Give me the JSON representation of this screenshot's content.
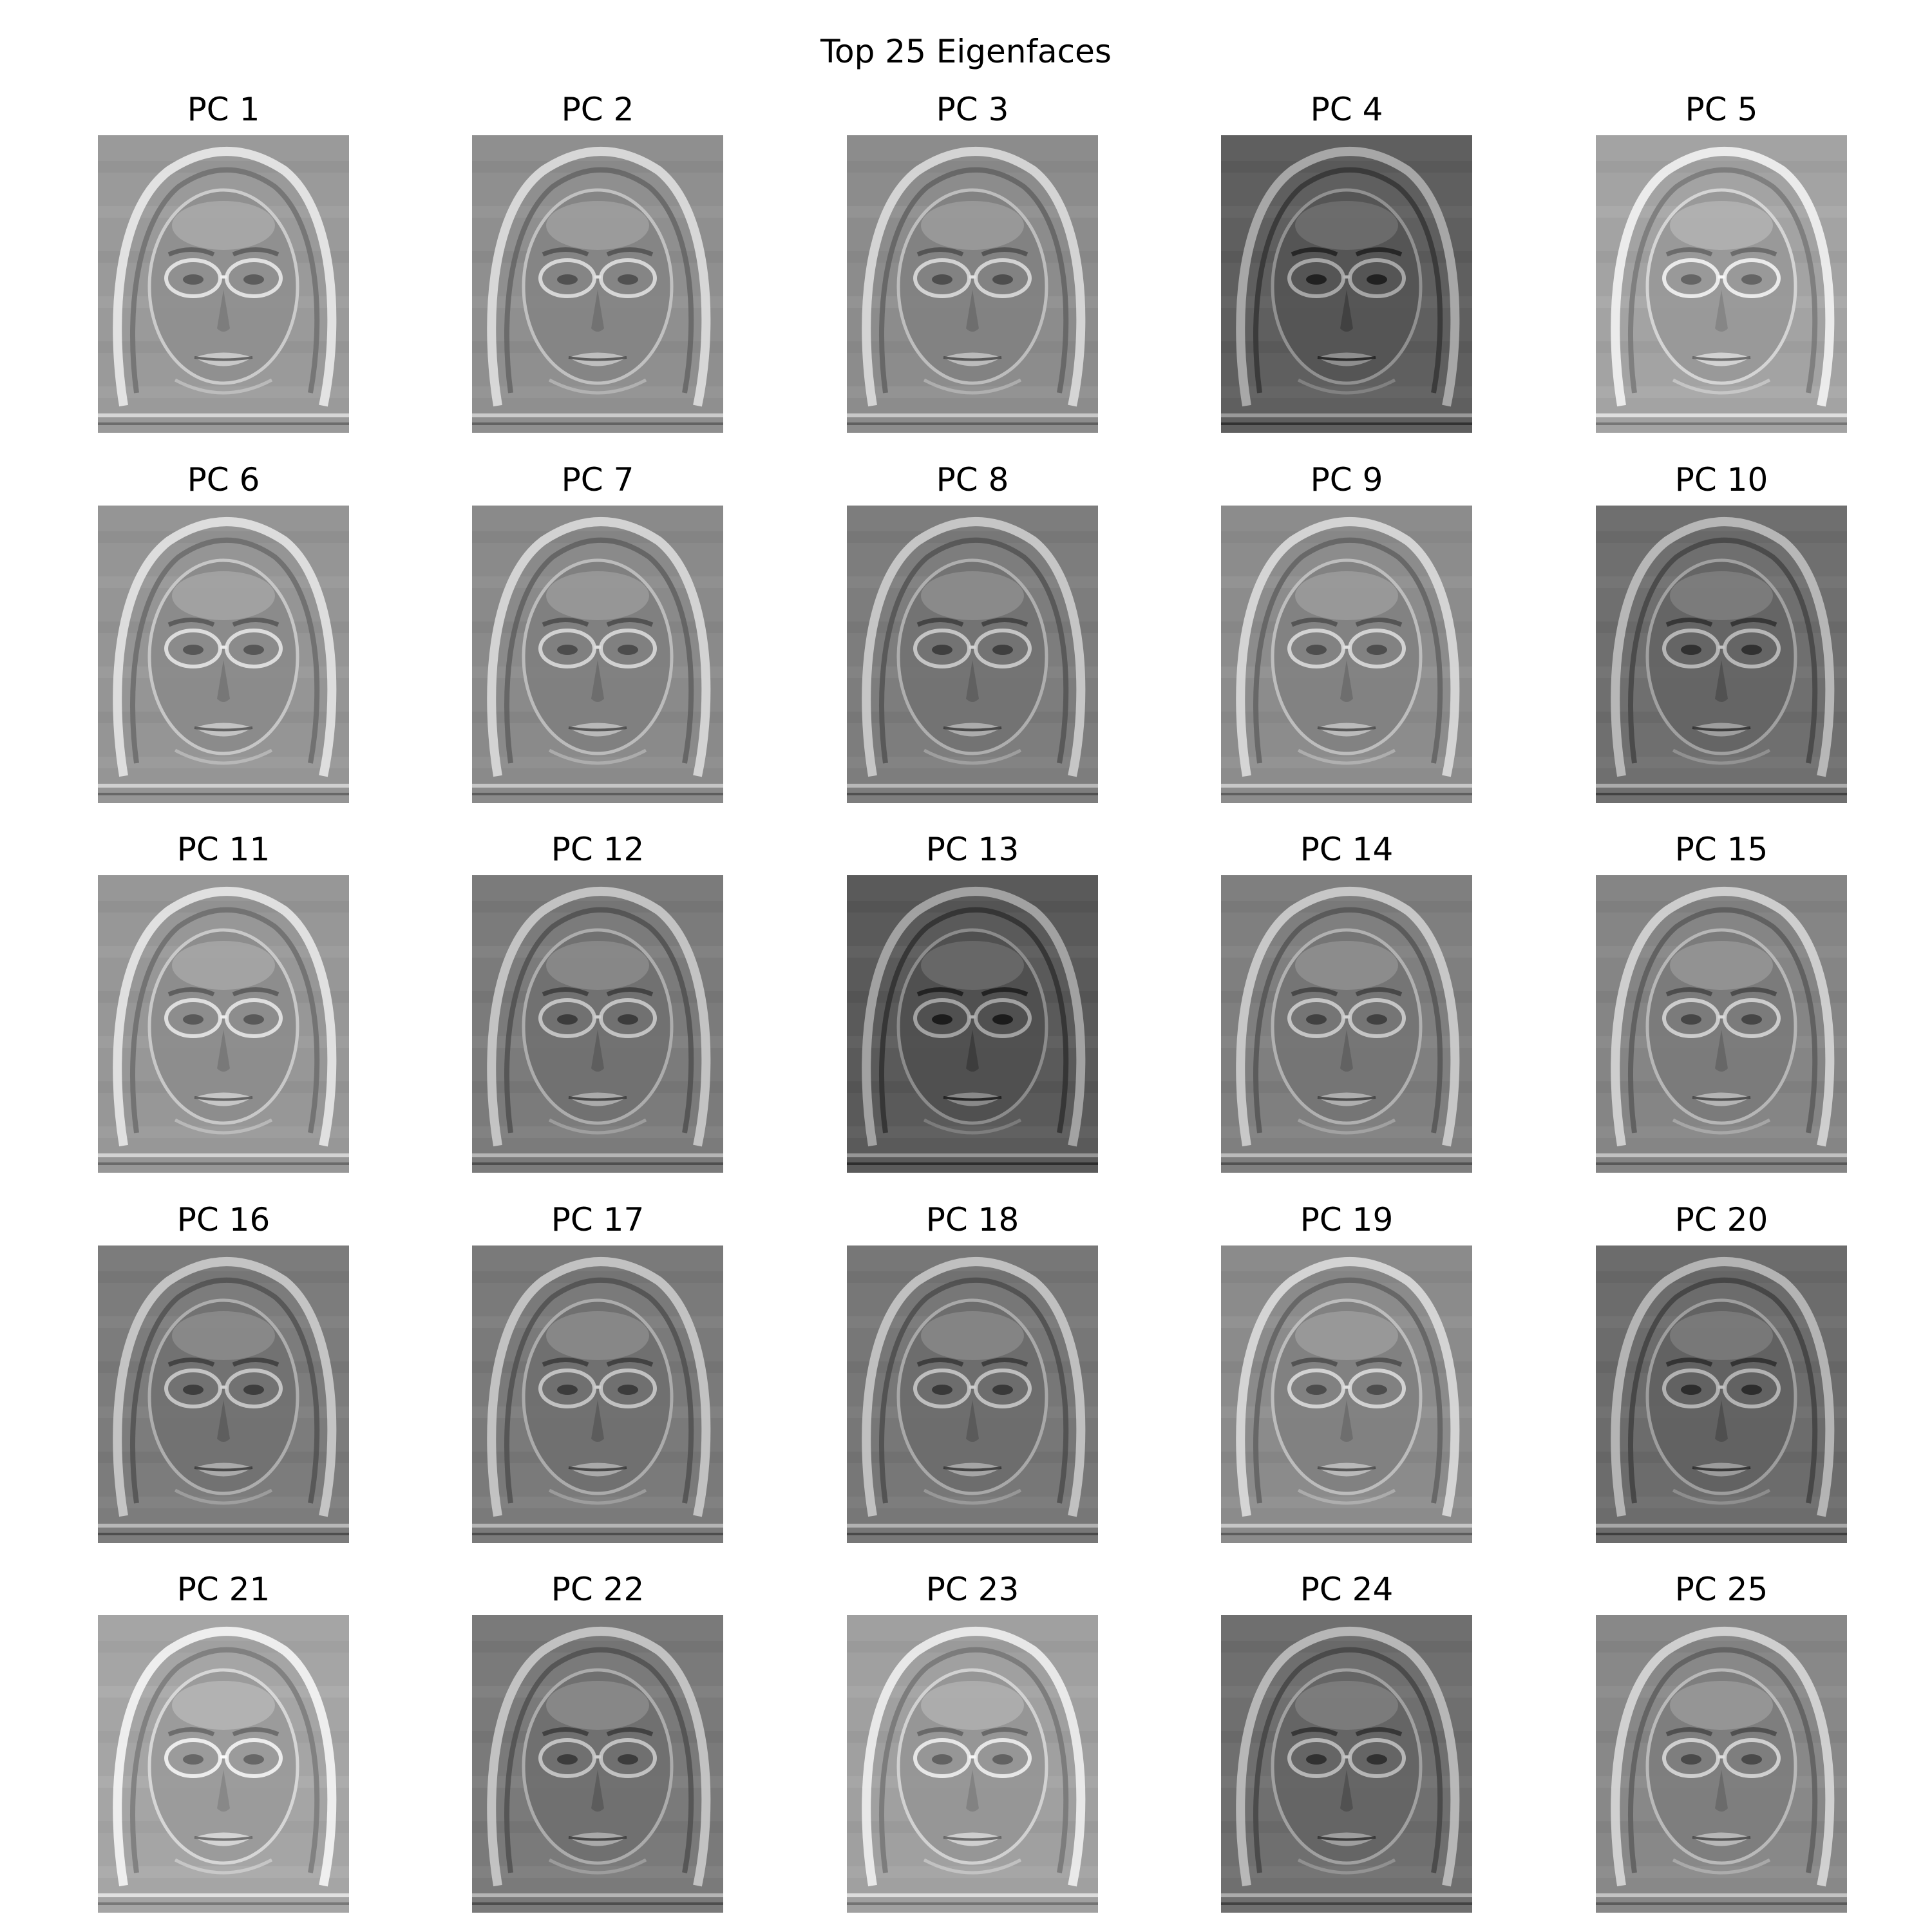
{
  "figure": {
    "title": "Top 25 Eigenfaces"
  },
  "panels": [
    {
      "label": "PC 1",
      "tone": "#9a9a9a"
    },
    {
      "label": "PC 2",
      "tone": "#8f8f8f"
    },
    {
      "label": "PC 3",
      "tone": "#8c8c8c"
    },
    {
      "label": "PC 4",
      "tone": "#5f5f5f"
    },
    {
      "label": "PC 5",
      "tone": "#a3a3a3"
    },
    {
      "label": "PC 6",
      "tone": "#959595"
    },
    {
      "label": "PC 7",
      "tone": "#8a8a8a"
    },
    {
      "label": "PC 8",
      "tone": "#7d7d7d"
    },
    {
      "label": "PC 9",
      "tone": "#8c8c8c"
    },
    {
      "label": "PC 10",
      "tone": "#6f6f6f"
    },
    {
      "label": "PC 11",
      "tone": "#979797"
    },
    {
      "label": "PC 12",
      "tone": "#7b7b7b"
    },
    {
      "label": "PC 13",
      "tone": "#5a5a5a"
    },
    {
      "label": "PC 14",
      "tone": "#7f7f7f"
    },
    {
      "label": "PC 15",
      "tone": "#858585"
    },
    {
      "label": "PC 16",
      "tone": "#7c7c7c"
    },
    {
      "label": "PC 17",
      "tone": "#7a7a7a"
    },
    {
      "label": "PC 18",
      "tone": "#777777"
    },
    {
      "label": "PC 19",
      "tone": "#8b8b8b"
    },
    {
      "label": "PC 20",
      "tone": "#6c6c6c"
    },
    {
      "label": "PC 21",
      "tone": "#a5a5a5"
    },
    {
      "label": "PC 22",
      "tone": "#7a7a7a"
    },
    {
      "label": "PC 23",
      "tone": "#a0a0a0"
    },
    {
      "label": "PC 24",
      "tone": "#6f6f6f"
    },
    {
      "label": "PC 25",
      "tone": "#888888"
    }
  ]
}
